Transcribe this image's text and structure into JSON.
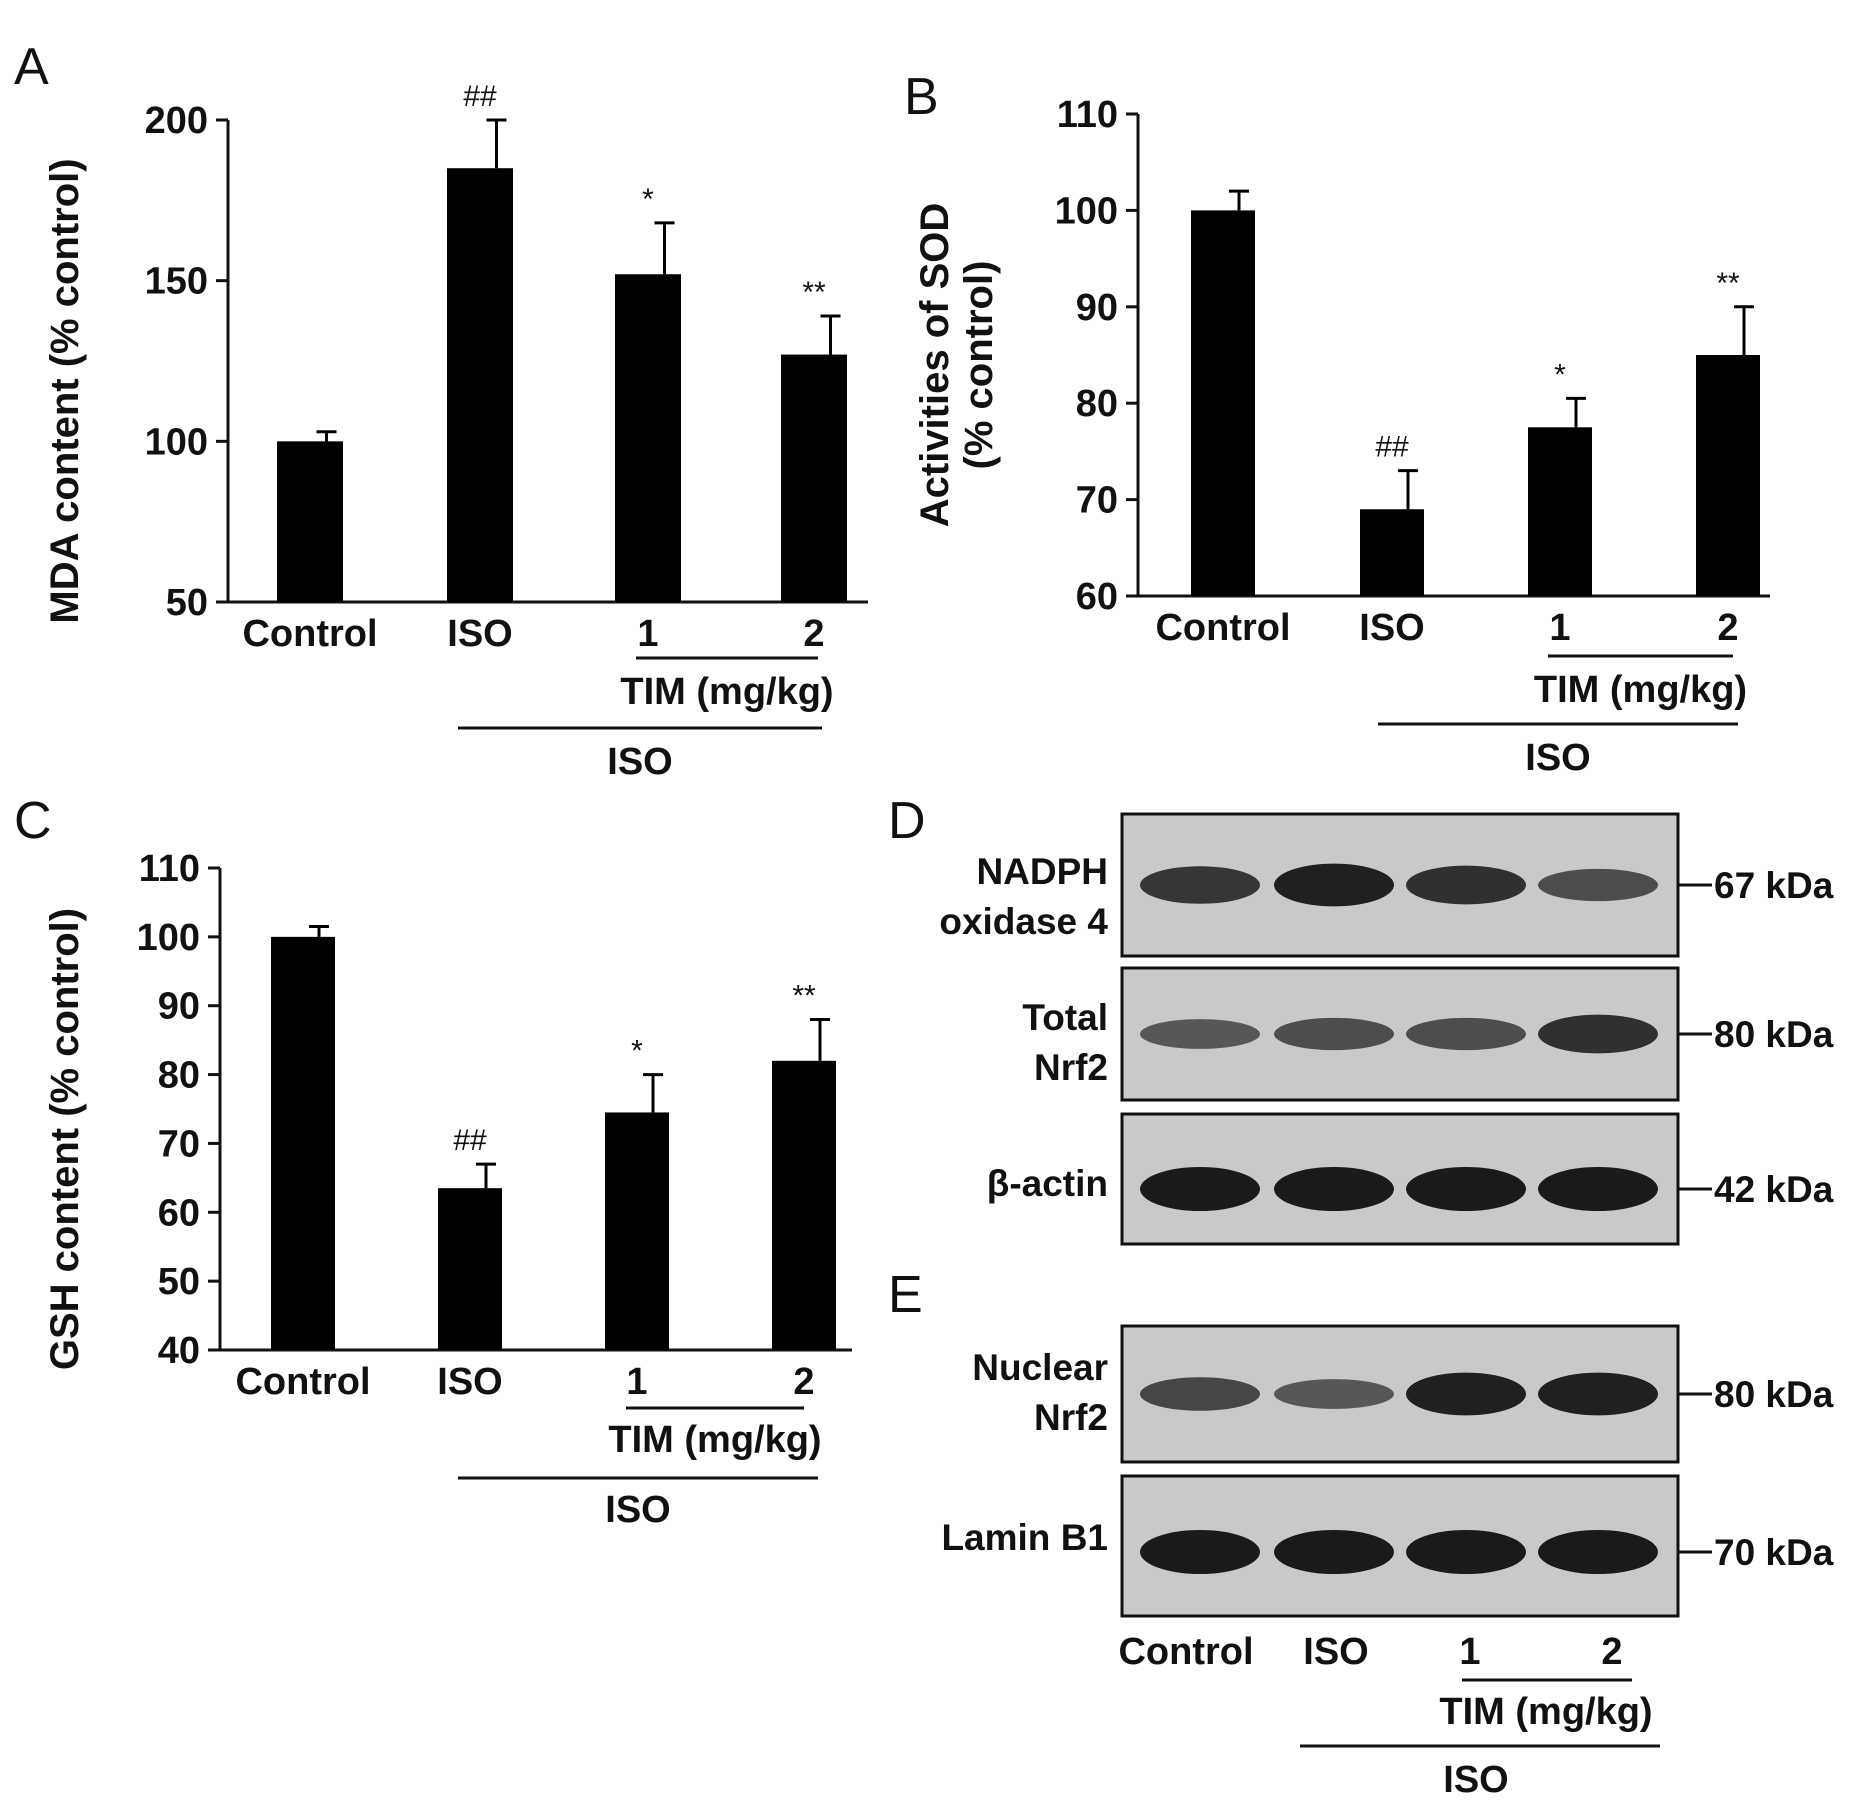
{
  "chart_data": [
    {
      "panel": "A",
      "type": "bar",
      "ylabel": "MDA content (% control)",
      "categories": [
        "Control",
        "ISO",
        "1",
        "2"
      ],
      "values": [
        100,
        185,
        152,
        127
      ],
      "errors": [
        3,
        15,
        16,
        12
      ],
      "significance": [
        "",
        "##",
        "*",
        "**"
      ],
      "ylim": [
        50,
        200
      ],
      "yticks": [
        50,
        100,
        150,
        200
      ],
      "group_labels": {
        "tim": "TIM (mg/kg)",
        "iso": "ISO"
      }
    },
    {
      "panel": "B",
      "type": "bar",
      "ylabel_lines": [
        "Activities of SOD",
        "(% control)"
      ],
      "categories": [
        "Control",
        "ISO",
        "1",
        "2"
      ],
      "values": [
        100,
        69,
        77.5,
        85
      ],
      "errors": [
        2,
        4,
        3,
        5
      ],
      "significance": [
        "",
        "##",
        "*",
        "**"
      ],
      "ylim": [
        60,
        110
      ],
      "yticks": [
        60,
        70,
        80,
        90,
        100,
        110
      ],
      "group_labels": {
        "tim": "TIM (mg/kg)",
        "iso": "ISO"
      }
    },
    {
      "panel": "C",
      "type": "bar",
      "ylabel": "GSH content (% control)",
      "categories": [
        "Control",
        "ISO",
        "1",
        "2"
      ],
      "values": [
        100,
        63.5,
        74.5,
        82
      ],
      "errors": [
        1.5,
        3.5,
        5.5,
        6
      ],
      "significance": [
        "",
        "##",
        "*",
        "**"
      ],
      "ylim": [
        40,
        110
      ],
      "yticks": [
        40,
        50,
        60,
        70,
        80,
        90,
        100,
        110
      ],
      "group_labels": {
        "tim": "TIM (mg/kg)",
        "iso": "ISO"
      }
    }
  ],
  "blots": {
    "panel_d": "D",
    "panel_e": "E",
    "d_rows": [
      {
        "label_lines": [
          "NADPH",
          "oxidase 4"
        ],
        "kda": "67 kDa",
        "intensity": [
          0.75,
          0.95,
          0.8,
          0.55
        ]
      },
      {
        "label_lines": [
          "Total",
          "Nrf2"
        ],
        "kda": "80 kDa",
        "intensity": [
          0.45,
          0.55,
          0.55,
          0.8
        ]
      },
      {
        "label_lines": [
          "β-actin"
        ],
        "kda": "42 kDa",
        "intensity": [
          1.0,
          1.0,
          1.0,
          1.0
        ]
      }
    ],
    "e_rows": [
      {
        "label_lines": [
          "Nuclear",
          "Nrf2"
        ],
        "kda": "80 kDa",
        "intensity": [
          0.6,
          0.45,
          0.95,
          0.95
        ]
      },
      {
        "label_lines": [
          "Lamin B1"
        ],
        "kda": "70 kDa",
        "intensity": [
          1.0,
          1.0,
          1.0,
          1.0
        ]
      }
    ],
    "categories": [
      "Control",
      "ISO",
      "1",
      "2"
    ],
    "group_labels": {
      "tim": "TIM (mg/kg)",
      "iso": "ISO"
    }
  }
}
